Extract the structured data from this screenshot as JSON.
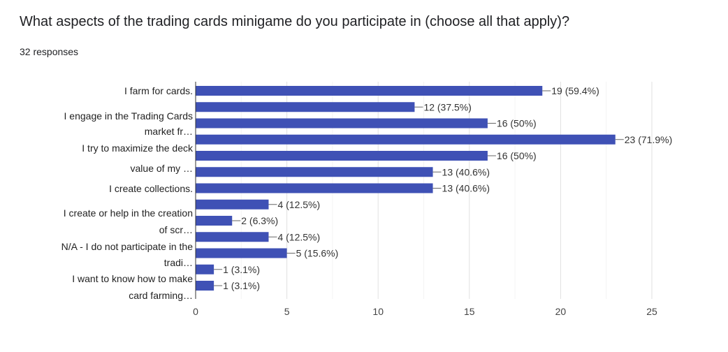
{
  "question": "What aspects of the trading cards minigame do you participate in (choose all that apply)?",
  "responses": "32 responses",
  "chart_data": {
    "type": "bar",
    "orientation": "horizontal",
    "title": "",
    "xlabel": "",
    "ylabel": "",
    "categories": [
      "I farm for cards.",
      "",
      "I engage in the Trading Cards market fr…",
      "",
      "I try to maximize the deck value of my …",
      "",
      "I create collections.",
      "",
      "I create or help in the creation of scr…",
      "",
      "N/A - I do not participate in the tradi…",
      "",
      "I want to know how to make card farming…"
    ],
    "values": [
      19,
      12,
      16,
      23,
      16,
      13,
      13,
      4,
      2,
      4,
      5,
      1,
      1
    ],
    "data_labels": [
      "19 (59.4%)",
      "12 (37.5%)",
      "16 (50%)",
      "23 (71.9%)",
      "16 (50%)",
      "13 (40.6%)",
      "13 (40.6%)",
      "4 (12.5%)",
      "2 (6.3%)",
      "4 (12.5%)",
      "5 (15.6%)",
      "1 (3.1%)",
      "1 (3.1%)"
    ],
    "xlim": [
      0,
      25
    ],
    "xticks": [
      "0",
      "5",
      "10",
      "15",
      "20",
      "25"
    ],
    "grid": true,
    "legend": "none",
    "bar_color": "#3f51b5"
  }
}
